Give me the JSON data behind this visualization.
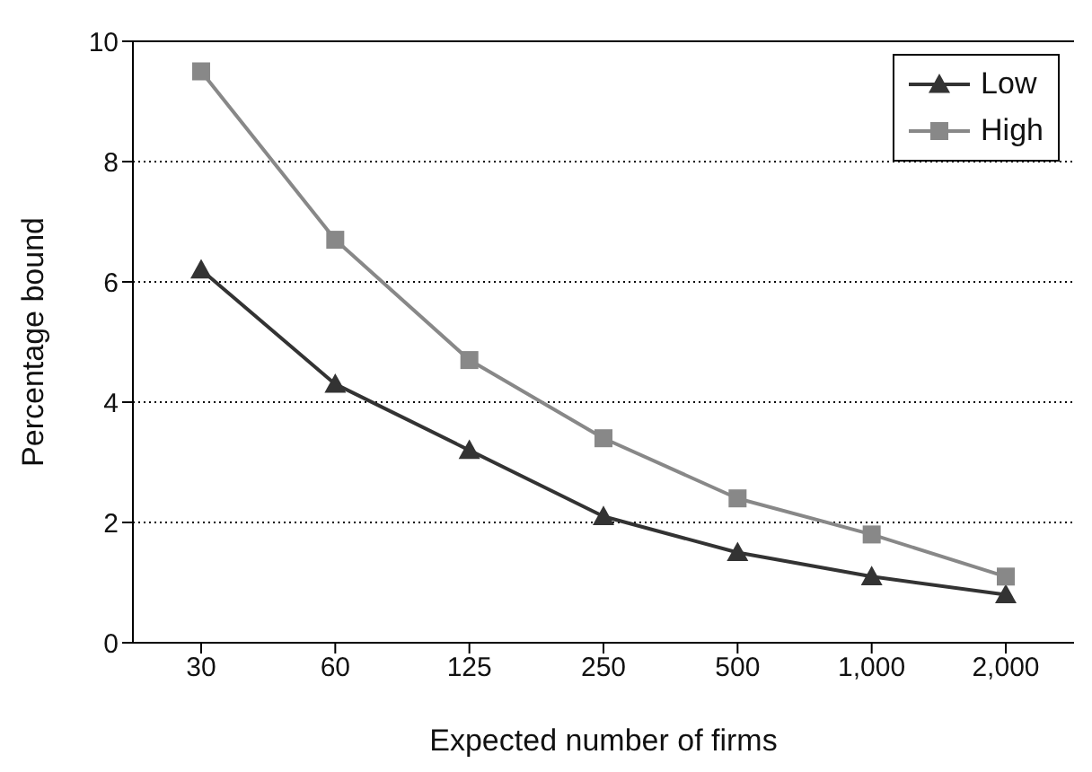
{
  "chart_data": {
    "type": "line",
    "xlabel": "Expected number of firms",
    "ylabel": "Percentage bound",
    "categories": [
      "30",
      "60",
      "125",
      "250",
      "500",
      "1,000",
      "2,000"
    ],
    "series": [
      {
        "name": "Low",
        "color": "#333333",
        "marker": "triangle",
        "values": [
          6.2,
          4.3,
          3.2,
          2.1,
          1.5,
          1.1,
          0.8
        ]
      },
      {
        "name": "High",
        "color": "#888888",
        "marker": "square",
        "values": [
          9.5,
          6.7,
          4.7,
          3.4,
          2.4,
          1.8,
          1.1
        ]
      }
    ],
    "ylim": [
      0,
      10
    ],
    "yticks": [
      0,
      2,
      4,
      6,
      8,
      10
    ],
    "grid": "y",
    "legend": "top right",
    "line_style": "solid"
  }
}
